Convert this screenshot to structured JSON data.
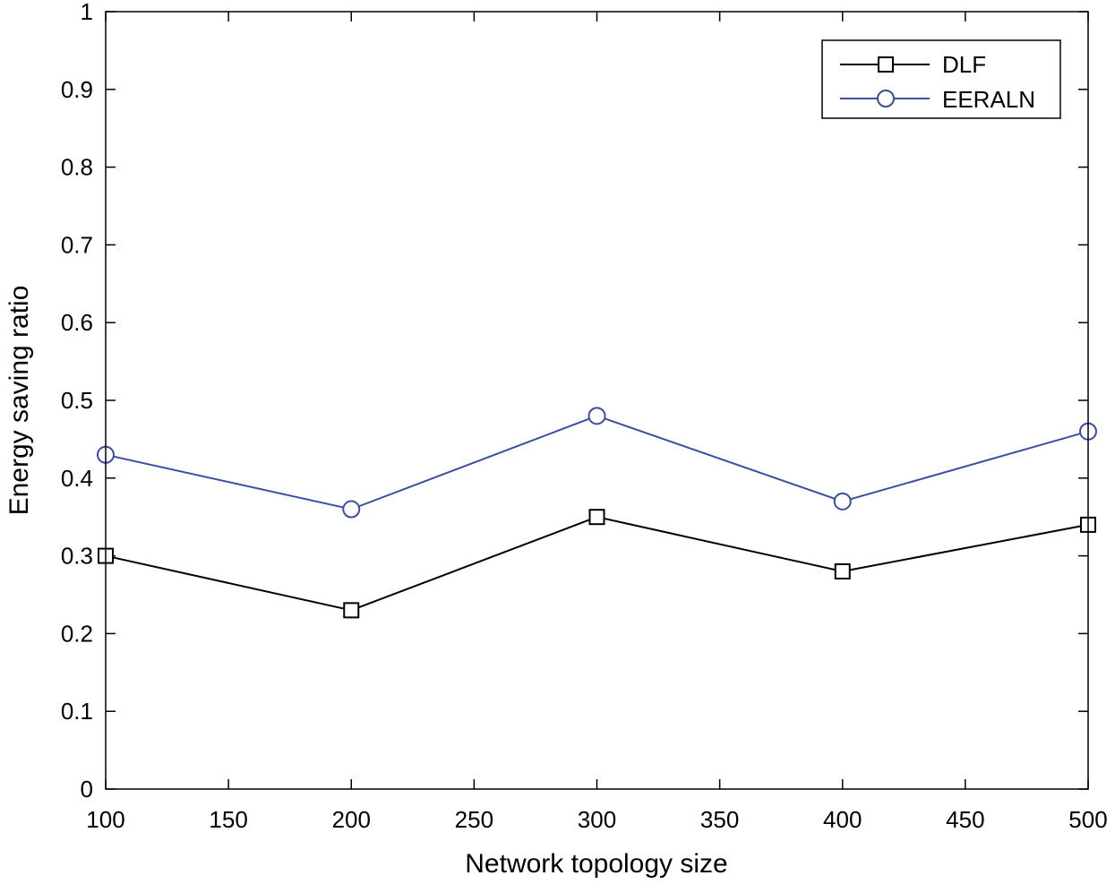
{
  "chart_data": {
    "type": "line",
    "title": "",
    "xlabel": "Network topology size",
    "ylabel": "Energy saving ratio",
    "xlim": [
      100,
      500
    ],
    "ylim": [
      0,
      1
    ],
    "grid": false,
    "legend_position": "top-right",
    "x": [
      100,
      200,
      300,
      400,
      500
    ],
    "x_ticks": [
      "100",
      "150",
      "200",
      "250",
      "300",
      "350",
      "400",
      "450",
      "500"
    ],
    "y_ticks": [
      "0",
      "0.1",
      "0.2",
      "0.3",
      "0.4",
      "0.5",
      "0.6",
      "0.7",
      "0.8",
      "0.9",
      "1"
    ],
    "series": [
      {
        "name": "DLF",
        "marker": "square",
        "color": "#000000",
        "values": [
          0.3,
          0.23,
          0.35,
          0.28,
          0.34
        ]
      },
      {
        "name": "EERALN",
        "marker": "circle",
        "color": "#3a4fa0",
        "values": [
          0.43,
          0.36,
          0.48,
          0.37,
          0.46
        ]
      }
    ]
  }
}
